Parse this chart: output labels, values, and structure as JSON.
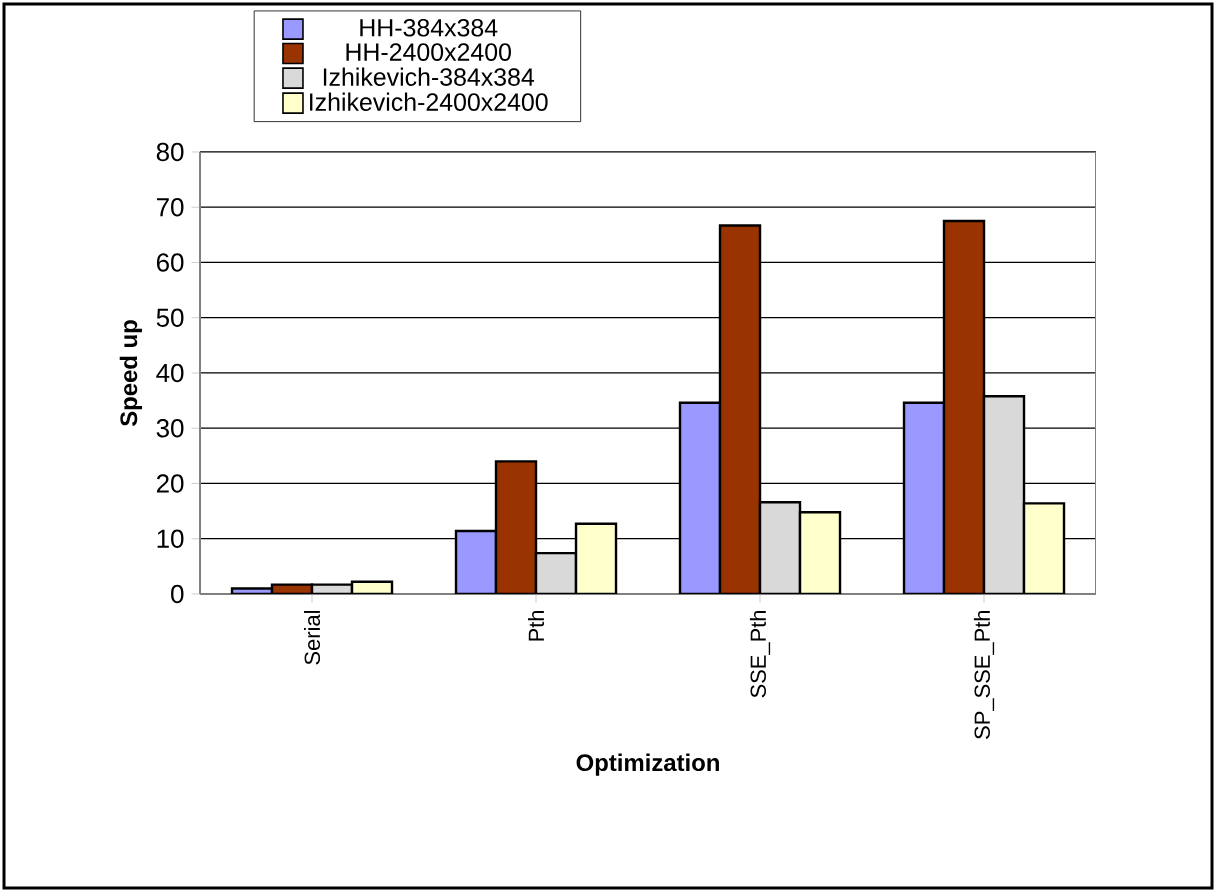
{
  "chart_data": {
    "type": "bar",
    "xlabel": "Optimization",
    "ylabel": "Speed up",
    "categories": [
      "Serial",
      "Pth",
      "SSE_Pth",
      "SP_SSE_Pth"
    ],
    "series": [
      {
        "name": "HH-384x384",
        "color": "#9999ff",
        "values": [
          1.0,
          11.4,
          34.6,
          34.6
        ]
      },
      {
        "name": "HH-2400x2400",
        "color": "#993300",
        "values": [
          1.7,
          24.0,
          66.7,
          67.5
        ]
      },
      {
        "name": "Izhikevich-384x384",
        "color": "#d9d9d9",
        "values": [
          1.7,
          7.4,
          16.6,
          35.8
        ]
      },
      {
        "name": "Izhikevich-2400x2400",
        "color": "#ffffcc",
        "values": [
          2.2,
          12.7,
          14.8,
          16.4
        ]
      }
    ],
    "ylim": [
      0,
      80
    ],
    "yticks": [
      0,
      10,
      20,
      30,
      40,
      50,
      60,
      70,
      80
    ],
    "grid": "y",
    "legend": "top left"
  }
}
